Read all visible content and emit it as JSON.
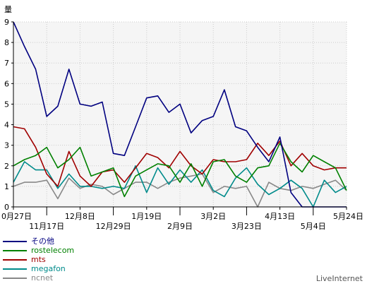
{
  "chart_data": {
    "type": "line",
    "ylabel": "量",
    "ylim": [
      0,
      9
    ],
    "yticks": [
      "0",
      "1",
      "2",
      "3",
      "4",
      "5",
      "6",
      "7",
      "8",
      "9"
    ],
    "grid": true,
    "legend_position": "bottom-left",
    "x_tick_labels": [
      {
        "label": "0月27日",
        "index": 0,
        "row": 0
      },
      {
        "label": "11月17日",
        "index": 3,
        "row": 1
      },
      {
        "label": "12月8日",
        "index": 6,
        "row": 0
      },
      {
        "label": "12月29日",
        "index": 9,
        "row": 1
      },
      {
        "label": "1月19日",
        "index": 12,
        "row": 0
      },
      {
        "label": "2月9日",
        "index": 15,
        "row": 1
      },
      {
        "label": "3月2日",
        "index": 18,
        "row": 0
      },
      {
        "label": "3月23日",
        "index": 21,
        "row": 1
      },
      {
        "label": "4月13日",
        "index": 24,
        "row": 0
      },
      {
        "label": "5月4日",
        "index": 27,
        "row": 1
      },
      {
        "label": "5月24日",
        "index": 30,
        "row": 0
      }
    ],
    "series": [
      {
        "name": "その他",
        "color": "#000080",
        "values": [
          9.0,
          7.8,
          6.7,
          4.4,
          4.9,
          6.7,
          5.0,
          4.9,
          5.1,
          2.6,
          2.5,
          3.9,
          5.3,
          5.4,
          4.6,
          5.0,
          3.6,
          4.2,
          4.4,
          5.7,
          3.9,
          3.7,
          2.9,
          2.2,
          3.4,
          0.7,
          0.0,
          0.0,
          0.0,
          0.0,
          0.0
        ]
      },
      {
        "name": "rostelecom",
        "color": "#008000",
        "values": [
          2.0,
          2.3,
          2.5,
          2.9,
          1.9,
          2.3,
          2.9,
          1.5,
          1.7,
          1.9,
          0.5,
          1.5,
          1.8,
          2.1,
          2.0,
          1.2,
          2.1,
          1.0,
          2.2,
          2.3,
          1.5,
          1.2,
          1.9,
          2.0,
          3.1,
          2.2,
          1.7,
          2.5,
          2.2,
          1.9,
          0.8
        ]
      },
      {
        "name": "mts",
        "color": "#a00000",
        "values": [
          3.9,
          3.8,
          2.9,
          1.6,
          1.0,
          2.7,
          1.5,
          1.0,
          1.7,
          1.8,
          1.2,
          1.9,
          2.6,
          2.4,
          1.9,
          2.7,
          2.0,
          1.6,
          2.3,
          2.2,
          2.2,
          2.3,
          3.1,
          2.5,
          3.2,
          2.0,
          2.6,
          2.0,
          1.8,
          1.9,
          1.9
        ]
      },
      {
        "name": "megafon",
        "color": "#008b8b",
        "values": [
          1.2,
          2.2,
          1.8,
          1.8,
          0.9,
          1.6,
          1.0,
          1.0,
          0.9,
          1.0,
          0.9,
          2.0,
          0.7,
          1.9,
          1.1,
          1.8,
          1.2,
          1.8,
          0.8,
          0.5,
          1.4,
          1.9,
          1.1,
          0.6,
          0.9,
          1.3,
          0.9,
          0.0,
          1.3,
          0.7,
          1.0
        ]
      },
      {
        "name": "ncnet",
        "color": "#888888",
        "values": [
          1.0,
          1.2,
          1.2,
          1.3,
          0.4,
          1.4,
          0.9,
          1.1,
          1.0,
          0.6,
          0.9,
          1.2,
          1.2,
          0.9,
          1.2,
          1.4,
          1.5,
          1.6,
          0.7,
          1.0,
          0.9,
          1.0,
          0.0,
          1.2,
          0.9,
          0.8,
          1.0,
          0.9,
          1.1,
          1.3,
          0.8
        ]
      }
    ]
  },
  "brand": "LiveInternet"
}
